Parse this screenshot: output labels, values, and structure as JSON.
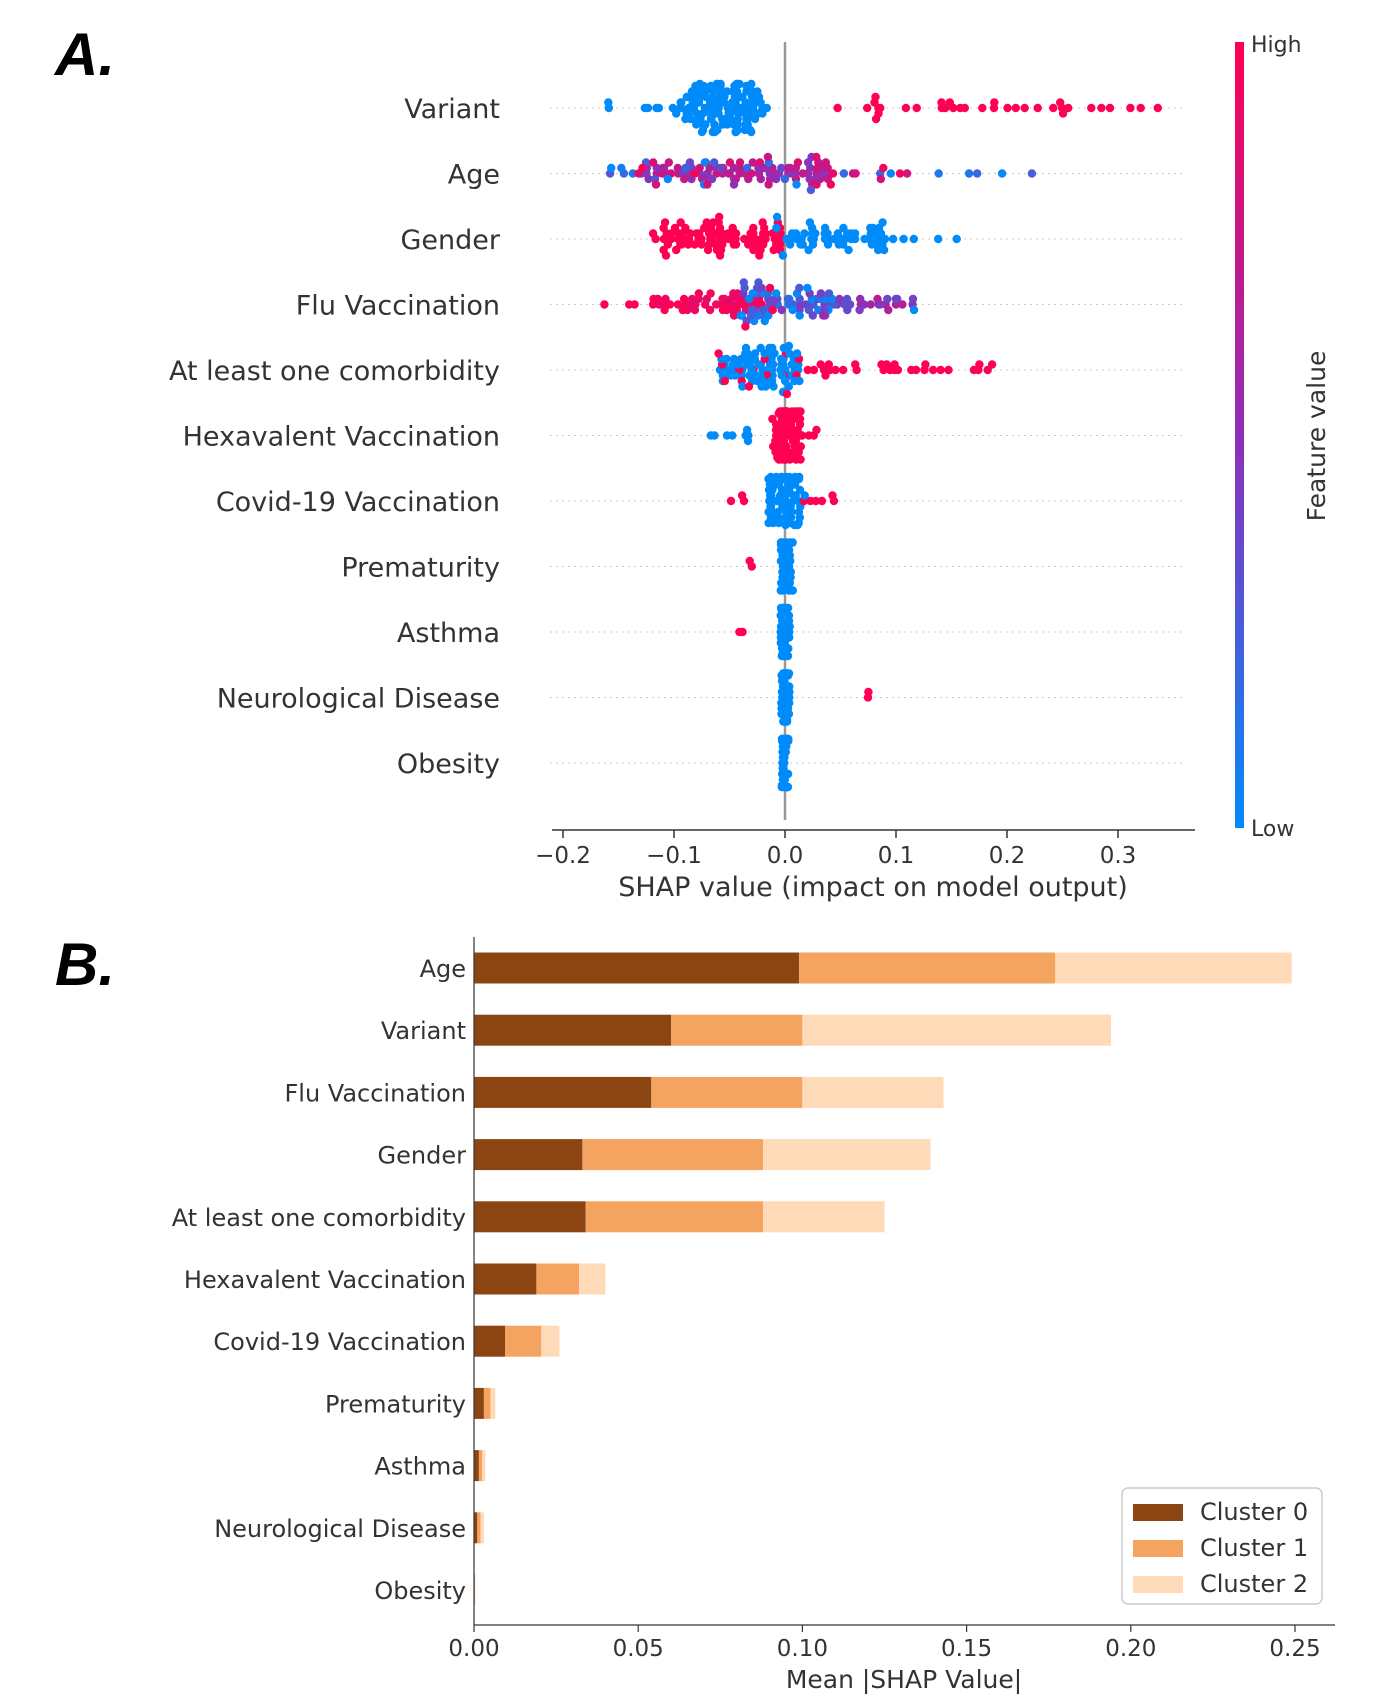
{
  "panel_a_label": "A.",
  "panel_b_label": "B.",
  "chart_data": [
    {
      "type": "scatter",
      "variant": "shap-beeswarm",
      "xlabel": "SHAP value (impact on model output)",
      "xlim": [
        -0.2,
        0.37
      ],
      "xticks": [
        -0.2,
        -0.1,
        0.0,
        0.1,
        0.2,
        0.3
      ],
      "xtick_labels": [
        "−0.2",
        "−0.1",
        "0.0",
        "0.1",
        "0.2",
        "0.3"
      ],
      "colorbar": {
        "label": "Feature value",
        "high_label": "High",
        "low_label": "Low",
        "high_color": "#ff0052",
        "low_color": "#008bfb"
      },
      "features": [
        {
          "name": "Variant",
          "spread_low": [
            -0.16,
            -0.016
          ],
          "spread_high": [
            0.045,
            0.345
          ],
          "main": [
            -0.095,
            -0.02
          ],
          "mix": "split"
        },
        {
          "name": "Age",
          "spread_low": [
            -0.18,
            0.23
          ],
          "spread_high": [
            -0.14,
            0.12
          ],
          "main": [
            -0.13,
            0.04
          ],
          "mix": "purple"
        },
        {
          "name": "Gender",
          "spread_low": [
            -0.01,
            0.155
          ],
          "spread_high": [
            -0.16,
            0.0
          ],
          "main": [
            -0.11,
            0.1
          ],
          "mix": "gender"
        },
        {
          "name": "Flu Vaccination",
          "spread_low": [
            -0.05,
            0.165
          ],
          "spread_high": [
            -0.17,
            0.0
          ],
          "main": [
            -0.12,
            0.12
          ],
          "mix": "flu"
        },
        {
          "name": "At least one comorbidity",
          "spread_low": [
            -0.075,
            0.01
          ],
          "spread_high": [
            0.02,
            0.2
          ],
          "main": [
            -0.06,
            0.015
          ],
          "mix": "comorb"
        },
        {
          "name": "Hexavalent Vaccination",
          "spread_low": [
            -0.07,
            -0.03
          ],
          "spread_high": [
            -0.015,
            0.03
          ],
          "main": [
            -0.01,
            0.015
          ],
          "mix": "hexa"
        },
        {
          "name": "Covid-19 Vaccination",
          "spread_low": [
            -0.02,
            0.02
          ],
          "spread_high": [
            -0.055,
            0.045
          ],
          "main": [
            -0.015,
            0.015
          ],
          "mix": "covid"
        },
        {
          "name": "Prematurity",
          "spread_low": [
            -0.004,
            0.01
          ],
          "spread_high": [
            -0.032,
            -0.018
          ],
          "main": [
            -0.004,
            0.006
          ],
          "mix": "thin"
        },
        {
          "name": "Asthma",
          "spread_low": [
            -0.004,
            0.006
          ],
          "spread_high": [
            -0.042,
            -0.014
          ],
          "main": [
            -0.004,
            0.004
          ],
          "mix": "thin"
        },
        {
          "name": "Neurological Disease",
          "spread_low": [
            -0.004,
            0.006
          ],
          "spread_high": [
            0.074,
            0.076
          ],
          "main": [
            -0.004,
            0.004
          ],
          "mix": "thin"
        },
        {
          "name": "Obesity",
          "spread_low": [
            -0.003,
            0.003
          ],
          "spread_high": [
            0.0,
            0.0
          ],
          "main": [
            -0.003,
            0.003
          ],
          "mix": "line"
        }
      ]
    },
    {
      "type": "bar",
      "orientation": "horizontal",
      "stacked": true,
      "xlabel": "Mean |SHAP Value|",
      "xlim": [
        0,
        0.262
      ],
      "xticks": [
        0.0,
        0.05,
        0.1,
        0.15,
        0.2,
        0.25
      ],
      "xtick_labels": [
        "0.00",
        "0.05",
        "0.10",
        "0.15",
        "0.20",
        "0.25"
      ],
      "legend_position": "bottom-right",
      "categories": [
        "Age",
        "Variant",
        "Flu Vaccination",
        "Gender",
        "At least one comorbidity",
        "Hexavalent Vaccination",
        "Covid-19 Vaccination",
        "Prematurity",
        "Asthma",
        "Neurological Disease",
        "Obesity"
      ],
      "series": [
        {
          "name": "Cluster 0",
          "color": "#8b4513",
          "values": [
            0.099,
            0.06,
            0.054,
            0.033,
            0.034,
            0.019,
            0.0095,
            0.003,
            0.0015,
            0.001,
            0.0002
          ]
        },
        {
          "name": "Cluster 1",
          "color": "#f4a460",
          "values": [
            0.078,
            0.04,
            0.046,
            0.055,
            0.054,
            0.013,
            0.011,
            0.002,
            0.001,
            0.001,
            0.0001
          ]
        },
        {
          "name": "Cluster 2",
          "color": "#ffdab9",
          "values": [
            0.072,
            0.094,
            0.043,
            0.051,
            0.037,
            0.008,
            0.0055,
            0.0015,
            0.001,
            0.001,
            0.0001
          ]
        }
      ]
    }
  ]
}
